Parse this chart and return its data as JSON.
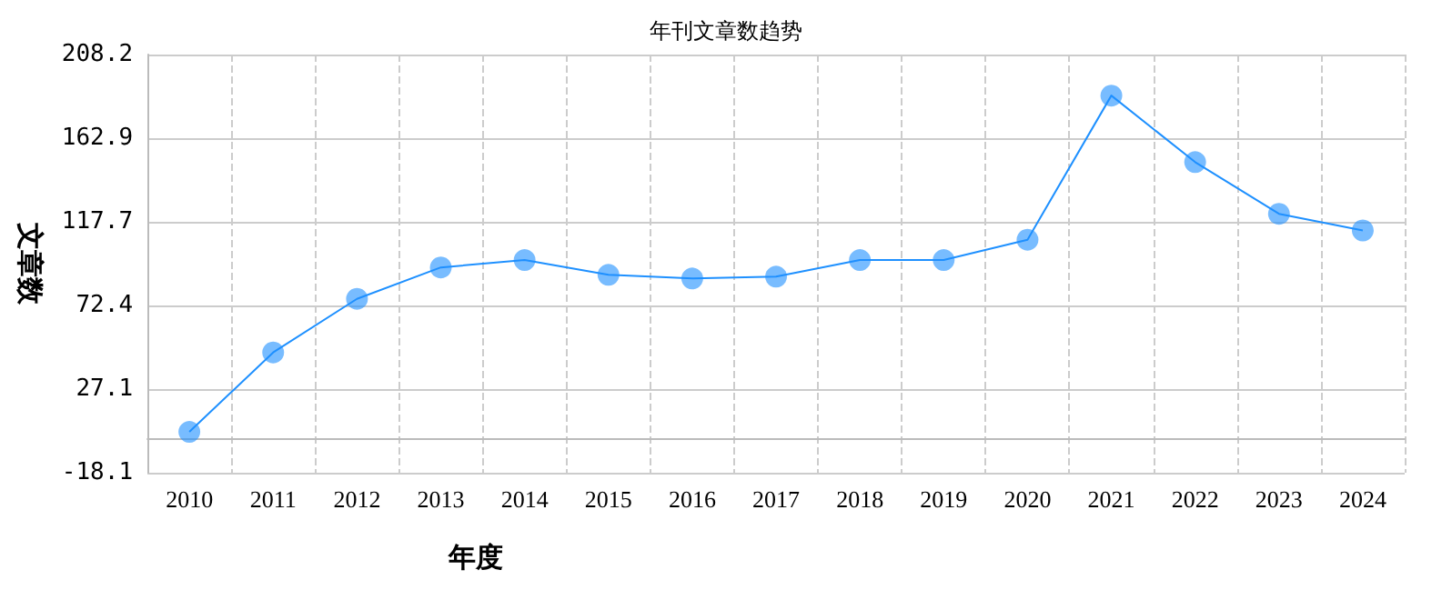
{
  "chart_data": {
    "type": "line",
    "title": "年刊文章数趋势",
    "xlabel": "年度",
    "ylabel": "文章数",
    "categories": [
      "2010",
      "2011",
      "2012",
      "2013",
      "2014",
      "2015",
      "2016",
      "2017",
      "2018",
      "2019",
      "2020",
      "2021",
      "2022",
      "2023",
      "2024"
    ],
    "series": [
      {
        "color": "#1e90ff",
        "values": [
          4,
          47,
          76,
          93,
          97,
          89,
          87,
          88,
          97,
          97,
          108,
          186,
          150,
          122,
          113
        ]
      }
    ],
    "ylim": [
      -18.1,
      208.2
    ],
    "yticks": [
      -18.1,
      27.1,
      72.4,
      117.7,
      162.9,
      208.2
    ],
    "grid": true,
    "marker": "circle"
  }
}
